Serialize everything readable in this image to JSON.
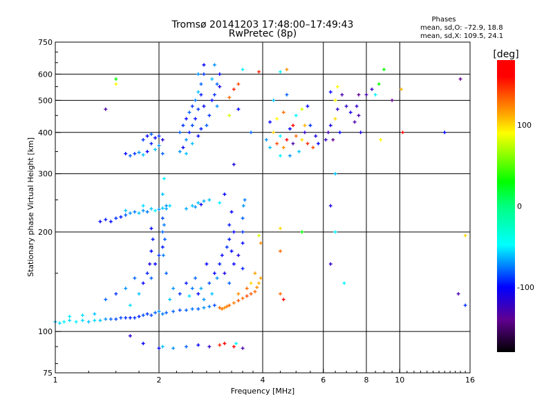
{
  "chart_data": {
    "type": "scatter",
    "title": "Tromsø 20141203 17:48:00–17:49:43",
    "subtitle": "RwPretec (8p)",
    "stats": {
      "heading": "Phases",
      "o_line": "mean, sd,O: –72.9, 18.8",
      "x_line": "mean, sd,X: 109.5, 24.1"
    },
    "xlabel": "Frequency [MHz]",
    "ylabel": "Stationary phase Virtual Height [km]",
    "xscale": "log",
    "yscale": "log",
    "xlim": [
      1,
      16
    ],
    "ylim": [
      75,
      750
    ],
    "xticks": [
      1,
      2,
      4,
      6,
      8,
      10,
      16
    ],
    "yticks": [
      75,
      100,
      200,
      300,
      400,
      500,
      600,
      750
    ],
    "xgrid": [
      2,
      4,
      6,
      8,
      10
    ],
    "ygrid": [
      100,
      200,
      300,
      400,
      500,
      600
    ],
    "colorbar": {
      "label": "[deg]",
      "range": [
        -180,
        180
      ],
      "ticks": [
        100,
        0,
        -100
      ],
      "stops": [
        [
          -180,
          "#000000"
        ],
        [
          -140,
          "#600090"
        ],
        [
          -100,
          "#0000ff"
        ],
        [
          -48,
          "#00ffff"
        ],
        [
          0,
          "#00ff80"
        ],
        [
          30,
          "#00ff00"
        ],
        [
          90,
          "#ffff00"
        ],
        [
          115,
          "#ffa000"
        ],
        [
          160,
          "#ff0000"
        ],
        [
          180,
          "#ff0000"
        ]
      ]
    },
    "point_fields": [
      "frequency_MHz",
      "height_km",
      "phase_deg"
    ],
    "points": [
      [
        1.0,
        107,
        -60
      ],
      [
        1.03,
        106,
        -55
      ],
      [
        1.06,
        107,
        -50
      ],
      [
        1.1,
        108,
        -55
      ],
      [
        1.15,
        107,
        -50
      ],
      [
        1.2,
        108,
        -55
      ],
      [
        1.25,
        107,
        -60
      ],
      [
        1.3,
        108,
        -55
      ],
      [
        1.35,
        108,
        -60
      ],
      [
        1.4,
        109,
        -70
      ],
      [
        1.45,
        109,
        -80
      ],
      [
        1.5,
        109,
        -85
      ],
      [
        1.55,
        110,
        -85
      ],
      [
        1.6,
        110,
        -90
      ],
      [
        1.65,
        110,
        -95
      ],
      [
        1.7,
        110,
        -90
      ],
      [
        1.75,
        111,
        -95
      ],
      [
        1.8,
        112,
        -85
      ],
      [
        1.85,
        113,
        -90
      ],
      [
        1.9,
        112,
        -85
      ],
      [
        1.95,
        114,
        -80
      ],
      [
        2.0,
        115,
        -70
      ],
      [
        2.05,
        113,
        -75
      ],
      [
        2.1,
        114,
        -80
      ],
      [
        2.2,
        115,
        -80
      ],
      [
        2.3,
        116,
        -85
      ],
      [
        2.4,
        116,
        -80
      ],
      [
        2.5,
        117,
        -75
      ],
      [
        2.6,
        117,
        -80
      ],
      [
        2.7,
        118,
        -70
      ],
      [
        2.8,
        119,
        -75
      ],
      [
        2.9,
        120,
        -85
      ],
      [
        1.1,
        111,
        -50
      ],
      [
        1.2,
        112,
        -55
      ],
      [
        1.3,
        113,
        -60
      ],
      [
        3.0,
        118,
        130
      ],
      [
        3.05,
        117,
        125
      ],
      [
        3.1,
        118,
        120
      ],
      [
        3.15,
        119,
        125
      ],
      [
        3.2,
        120,
        130
      ],
      [
        3.3,
        122,
        125
      ],
      [
        3.4,
        124,
        135
      ],
      [
        3.5,
        126,
        130
      ],
      [
        3.6,
        128,
        140
      ],
      [
        3.7,
        130,
        135
      ],
      [
        3.8,
        132,
        130
      ],
      [
        3.85,
        136,
        120
      ],
      [
        3.9,
        140,
        110
      ],
      [
        3.95,
        145,
        115
      ],
      [
        3.4,
        130,
        120
      ],
      [
        3.6,
        135,
        130
      ],
      [
        3.7,
        140,
        100
      ],
      [
        3.8,
        150,
        115
      ],
      [
        1.8,
        140,
        -100
      ],
      [
        1.85,
        150,
        -95
      ],
      [
        1.9,
        145,
        -80
      ],
      [
        1.95,
        160,
        -100
      ],
      [
        2.0,
        170,
        -90
      ],
      [
        2.05,
        180,
        -95
      ],
      [
        2.1,
        150,
        -80
      ],
      [
        2.2,
        135,
        -70
      ],
      [
        2.3,
        130,
        -90
      ],
      [
        2.4,
        140,
        -95
      ],
      [
        2.5,
        135,
        -75
      ],
      [
        2.55,
        145,
        -80
      ],
      [
        2.6,
        130,
        -100
      ],
      [
        2.7,
        125,
        -70
      ],
      [
        2.8,
        140,
        -85
      ],
      [
        2.9,
        150,
        -100
      ],
      [
        3.0,
        160,
        -95
      ],
      [
        3.05,
        170,
        -100
      ],
      [
        3.1,
        150,
        -110
      ],
      [
        3.15,
        180,
        -90
      ],
      [
        3.2,
        190,
        -95
      ],
      [
        3.25,
        175,
        -100
      ],
      [
        3.3,
        160,
        -100
      ],
      [
        3.3,
        200,
        -100
      ],
      [
        3.2,
        140,
        -80
      ],
      [
        3.4,
        170,
        -110
      ],
      [
        3.5,
        155,
        -95
      ],
      [
        3.5,
        185,
        -100
      ],
      [
        1.5,
        130,
        -90
      ],
      [
        1.4,
        125,
        -80
      ],
      [
        1.6,
        135,
        -70
      ],
      [
        1.7,
        145,
        -80
      ],
      [
        1.75,
        130,
        -60
      ],
      [
        1.65,
        120,
        -55
      ],
      [
        2.15,
        125,
        -60
      ],
      [
        2.45,
        128,
        -55
      ],
      [
        2.65,
        135,
        -65
      ],
      [
        2.85,
        130,
        -60
      ],
      [
        2.75,
        160,
        -100
      ],
      [
        2.95,
        145,
        -70
      ],
      [
        2.05,
        200,
        -80
      ],
      [
        2.07,
        210,
        -75
      ],
      [
        2.05,
        220,
        -85
      ],
      [
        2.08,
        190,
        -80
      ],
      [
        2.06,
        170,
        -75
      ],
      [
        2.1,
        240,
        -70
      ],
      [
        2.05,
        260,
        -60
      ],
      [
        2.07,
        290,
        -50
      ],
      [
        1.9,
        175,
        -100
      ],
      [
        1.92,
        190,
        -95
      ],
      [
        1.9,
        205,
        -100
      ],
      [
        1.88,
        160,
        -110
      ],
      [
        3.2,
        210,
        -95
      ],
      [
        3.25,
        230,
        -100
      ],
      [
        3.5,
        200,
        -90
      ],
      [
        3.5,
        220,
        -80
      ],
      [
        3.52,
        240,
        -70
      ],
      [
        3.55,
        250,
        -75
      ],
      [
        1.35,
        215,
        -100
      ],
      [
        1.4,
        218,
        -95
      ],
      [
        1.45,
        215,
        -100
      ],
      [
        1.5,
        220,
        -90
      ],
      [
        1.55,
        222,
        -95
      ],
      [
        1.6,
        225,
        -80
      ],
      [
        1.65,
        228,
        -70
      ],
      [
        1.7,
        230,
        -75
      ],
      [
        1.75,
        228,
        -60
      ],
      [
        1.8,
        232,
        -70
      ],
      [
        1.85,
        230,
        -75
      ],
      [
        1.9,
        235,
        -60
      ],
      [
        1.95,
        232,
        -50
      ],
      [
        2.0,
        234,
        -70
      ],
      [
        2.05,
        236,
        -60
      ],
      [
        2.1,
        235,
        -65
      ],
      [
        2.15,
        240,
        -55
      ],
      [
        1.6,
        232,
        -60
      ],
      [
        1.8,
        240,
        -55
      ],
      [
        2.4,
        235,
        -65
      ],
      [
        2.5,
        240,
        -60
      ],
      [
        2.55,
        238,
        -70
      ],
      [
        2.6,
        245,
        -60
      ],
      [
        2.65,
        242,
        -100
      ],
      [
        2.7,
        248,
        -65
      ],
      [
        2.8,
        250,
        -60
      ],
      [
        3.1,
        260,
        -100
      ],
      [
        3.0,
        245,
        -50
      ],
      [
        3.9,
        195,
        80
      ],
      [
        3.95,
        185,
        120
      ],
      [
        4.5,
        205,
        100
      ],
      [
        4.5,
        175,
        130
      ],
      [
        4.5,
        130,
        130
      ],
      [
        4.6,
        125,
        170
      ],
      [
        1.6,
        345,
        -100
      ],
      [
        1.65,
        340,
        -80
      ],
      [
        1.7,
        345,
        -90
      ],
      [
        1.75,
        348,
        -70
      ],
      [
        1.8,
        342,
        -60
      ],
      [
        1.85,
        350,
        -100
      ],
      [
        1.8,
        380,
        -90
      ],
      [
        1.85,
        390,
        -100
      ],
      [
        1.9,
        395,
        -80
      ],
      [
        1.95,
        385,
        -100
      ],
      [
        2.0,
        390,
        -90
      ],
      [
        2.05,
        380,
        -110
      ],
      [
        1.9,
        370,
        -95
      ],
      [
        2.0,
        365,
        -70
      ],
      [
        1.95,
        355,
        -60
      ],
      [
        2.05,
        345,
        -80
      ],
      [
        2.3,
        400,
        -80
      ],
      [
        2.35,
        420,
        -90
      ],
      [
        2.4,
        440,
        -100
      ],
      [
        2.45,
        460,
        -80
      ],
      [
        2.5,
        480,
        -90
      ],
      [
        2.4,
        380,
        -70
      ],
      [
        2.45,
        400,
        -95
      ],
      [
        2.5,
        420,
        -85
      ],
      [
        2.55,
        440,
        -100
      ],
      [
        2.6,
        470,
        -90
      ],
      [
        2.55,
        500,
        -75
      ],
      [
        2.6,
        530,
        -60
      ],
      [
        2.65,
        560,
        -80
      ],
      [
        2.7,
        600,
        -90
      ],
      [
        2.7,
        640,
        -100
      ],
      [
        2.6,
        600,
        -70
      ],
      [
        2.65,
        520,
        -95
      ],
      [
        2.7,
        480,
        -100
      ],
      [
        2.35,
        360,
        -100
      ],
      [
        2.3,
        350,
        -70
      ],
      [
        2.5,
        370,
        -60
      ],
      [
        2.6,
        390,
        -100
      ],
      [
        2.65,
        410,
        -95
      ],
      [
        2.75,
        420,
        -80
      ],
      [
        2.8,
        450,
        -90
      ],
      [
        2.85,
        500,
        -100
      ],
      [
        2.9,
        520,
        -90
      ],
      [
        2.95,
        560,
        -80
      ],
      [
        3.0,
        600,
        -100
      ],
      [
        2.9,
        640,
        -70
      ],
      [
        2.85,
        580,
        -60
      ],
      [
        3.0,
        550,
        -110
      ],
      [
        2.95,
        480,
        -70
      ],
      [
        2.4,
        345,
        -60
      ],
      [
        1.4,
        470,
        -130
      ],
      [
        1.5,
        560,
        90
      ],
      [
        1.5,
        580,
        30
      ],
      [
        3.2,
        510,
        130
      ],
      [
        3.3,
        540,
        150
      ],
      [
        3.4,
        560,
        140
      ],
      [
        3.5,
        620,
        -50
      ],
      [
        3.2,
        450,
        80
      ],
      [
        3.4,
        470,
        -100
      ],
      [
        3.7,
        400,
        -80
      ],
      [
        3.3,
        320,
        -110
      ],
      [
        3.9,
        610,
        150
      ],
      [
        4.5,
        610,
        -50
      ],
      [
        4.7,
        620,
        120
      ],
      [
        4.1,
        380,
        -70
      ],
      [
        4.2,
        360,
        -60
      ],
      [
        4.3,
        400,
        100
      ],
      [
        4.4,
        370,
        140
      ],
      [
        4.5,
        390,
        -50
      ],
      [
        4.6,
        360,
        120
      ],
      [
        4.7,
        380,
        160
      ],
      [
        4.8,
        410,
        -100
      ],
      [
        4.9,
        370,
        -130
      ],
      [
        5.0,
        390,
        130
      ],
      [
        5.1,
        350,
        -60
      ],
      [
        5.2,
        380,
        100
      ],
      [
        5.3,
        400,
        -120
      ],
      [
        5.4,
        370,
        150
      ],
      [
        5.5,
        420,
        -90
      ],
      [
        5.6,
        360,
        140
      ],
      [
        5.7,
        390,
        -110
      ],
      [
        4.4,
        440,
        90
      ],
      [
        4.6,
        460,
        130
      ],
      [
        5.0,
        450,
        -50
      ],
      [
        5.2,
        470,
        80
      ],
      [
        4.3,
        500,
        -60
      ],
      [
        4.7,
        520,
        -80
      ],
      [
        4.5,
        340,
        -50
      ],
      [
        4.8,
        340,
        -70
      ],
      [
        5.8,
        370,
        -100
      ],
      [
        4.2,
        430,
        -100
      ],
      [
        5.4,
        480,
        -100
      ],
      [
        5.3,
        420,
        110
      ],
      [
        4.9,
        420,
        170
      ],
      [
        6.1,
        380,
        -120
      ],
      [
        6.2,
        400,
        -130
      ],
      [
        6.3,
        420,
        -110
      ],
      [
        6.4,
        380,
        -140
      ],
      [
        6.5,
        440,
        100
      ],
      [
        6.5,
        500,
        90
      ],
      [
        6.6,
        470,
        -120
      ],
      [
        6.7,
        400,
        -100
      ],
      [
        6.8,
        520,
        -130
      ],
      [
        7.0,
        480,
        -120
      ],
      [
        7.2,
        460,
        -110
      ],
      [
        7.4,
        430,
        -130
      ],
      [
        7.5,
        480,
        -120
      ],
      [
        7.6,
        520,
        -140
      ],
      [
        7.7,
        400,
        -110
      ],
      [
        7.6,
        450,
        -130
      ],
      [
        6.3,
        530,
        -100
      ],
      [
        6.6,
        550,
        90
      ],
      [
        8.0,
        520,
        -130
      ],
      [
        8.3,
        540,
        -120
      ],
      [
        8.5,
        520,
        -50
      ],
      [
        8.7,
        560,
        30
      ],
      [
        9.0,
        620,
        30
      ],
      [
        9.5,
        500,
        -140
      ],
      [
        10.1,
        540,
        110
      ],
      [
        10.2,
        400,
        160
      ],
      [
        8.8,
        380,
        90
      ],
      [
        6.5,
        300,
        -60
      ],
      [
        13.5,
        400,
        -100
      ],
      [
        15,
        580,
        -140
      ],
      [
        15.5,
        195,
        100
      ],
      [
        14.8,
        130,
        -130
      ],
      [
        15.5,
        120,
        -90
      ],
      [
        6.9,
        140,
        -50
      ],
      [
        6.3,
        240,
        -110
      ],
      [
        6.5,
        200,
        -50
      ],
      [
        6.3,
        160,
        -120
      ],
      [
        5.2,
        200,
        30
      ],
      [
        1.8,
        92,
        -100
      ],
      [
        2.0,
        89,
        -100
      ],
      [
        2.05,
        90,
        -60
      ],
      [
        2.2,
        89,
        -70
      ],
      [
        2.6,
        91,
        -100
      ],
      [
        2.8,
        90,
        -120
      ],
      [
        3.0,
        91,
        150
      ],
      [
        3.1,
        92,
        160
      ],
      [
        3.3,
        90,
        170
      ],
      [
        3.35,
        92,
        -50
      ],
      [
        3.5,
        89,
        -130
      ],
      [
        1.65,
        97,
        -120
      ],
      [
        2.4,
        90,
        -80
      ]
    ]
  }
}
